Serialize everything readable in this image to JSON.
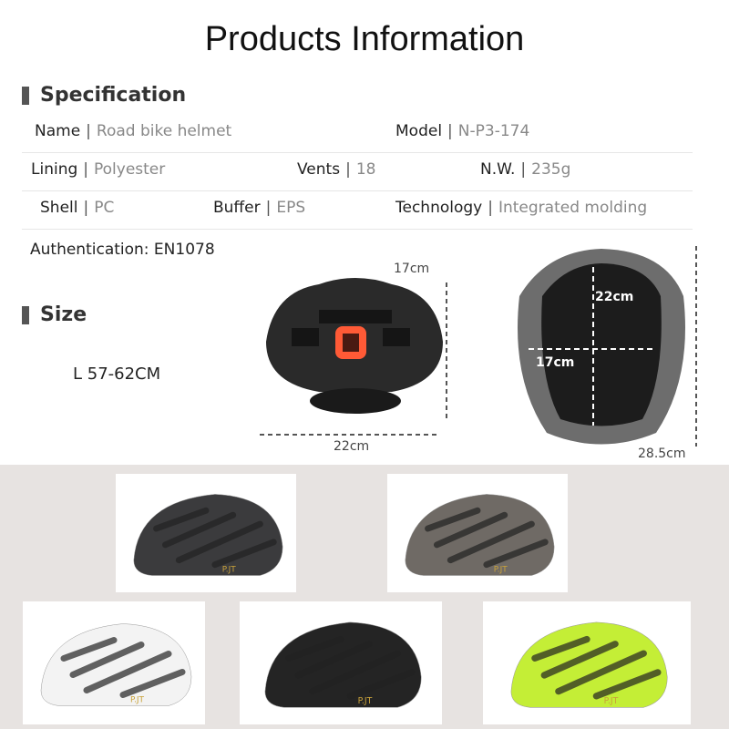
{
  "title": "Products Information",
  "specification": {
    "heading": "Specification",
    "rows": [
      [
        {
          "key": "Name",
          "value": "Road bike helmet"
        },
        {
          "key": "Model",
          "value": "N-P3-174"
        }
      ],
      [
        {
          "key": "Lining",
          "value": "Polyester"
        },
        {
          "key": "Vents",
          "value": "18"
        },
        {
          "key": "N.W.",
          "value": "235g"
        }
      ],
      [
        {
          "key": "Shell",
          "value": "PC"
        },
        {
          "key": "Buffer",
          "value": "EPS"
        },
        {
          "key": "Technology",
          "value": "Integrated molding"
        }
      ]
    ],
    "authentication": "Authentication: EN1078"
  },
  "size": {
    "heading": "Size",
    "value": "L 57-62CM"
  },
  "dimensions": {
    "rear_height": "17cm",
    "rear_width": "22cm",
    "inner_length": "22cm",
    "inner_width": "17cm",
    "total_length": "28.5cm"
  },
  "variants": [
    {
      "name": "carbon-black",
      "color": "#3b3b3d"
    },
    {
      "name": "gunmetal",
      "color": "#6f6a65"
    },
    {
      "name": "white",
      "color": "#f3f3f3"
    },
    {
      "name": "matte-black",
      "color": "#242424"
    },
    {
      "name": "neon-yellow",
      "color": "#c4ee36"
    }
  ],
  "colors": {
    "accent_bar": "#555555",
    "bottom_bg": "#e7e3e1",
    "tail_light": "#ff5a36"
  }
}
